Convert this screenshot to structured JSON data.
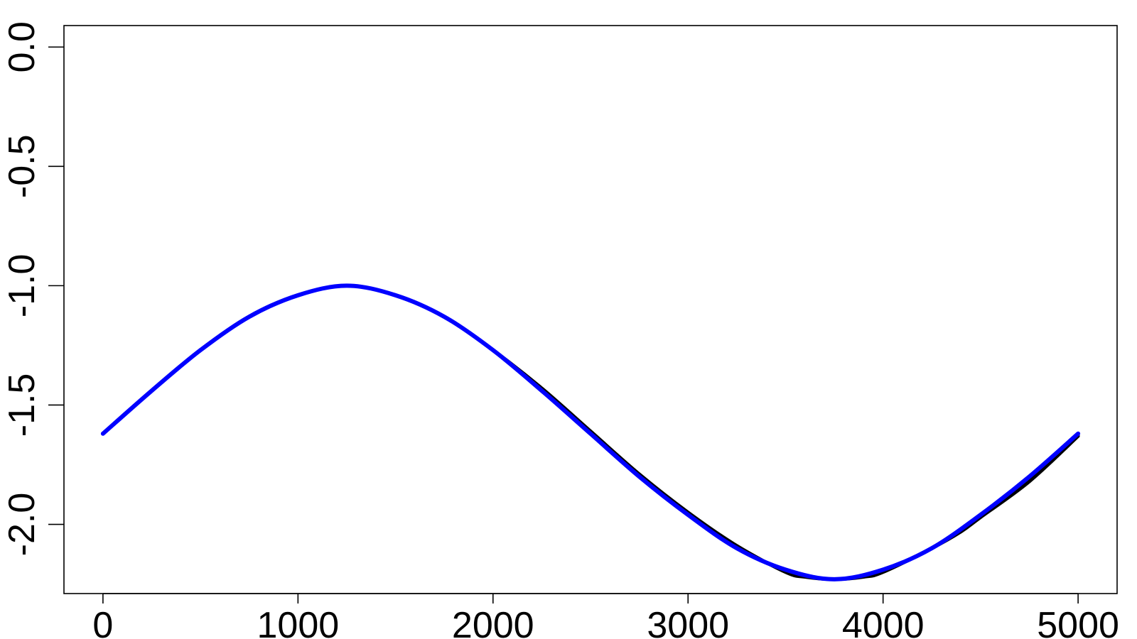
{
  "chart_data": {
    "type": "line",
    "title": "",
    "xlabel": "",
    "ylabel": "",
    "xlim": [
      -200,
      5200
    ],
    "ylim": [
      -2.29,
      0.09
    ],
    "x_ticks": [
      0,
      1000,
      2000,
      3000,
      4000,
      5000
    ],
    "y_ticks": [
      0.0,
      -0.5,
      -1.0,
      -1.5,
      -2.0
    ],
    "x_tick_labels": [
      "0",
      "1000",
      "2000",
      "3000",
      "4000",
      "5000"
    ],
    "y_tick_labels": [
      "0.0",
      "-0.5",
      "-1.0",
      "-1.5",
      "-2.0"
    ],
    "grid": false,
    "legend": "none",
    "series": [
      {
        "color": "#000000",
        "x": [
          0,
          250,
          500,
          750,
          1000,
          1250,
          1500,
          1750,
          2000,
          2250,
          2500,
          2750,
          3000,
          3250,
          3500,
          3600,
          3750,
          3900,
          4000,
          4250,
          4400,
          4500,
          4750,
          5000
        ],
        "values": [
          -1.62,
          -1.44,
          -1.27,
          -1.13,
          -1.04,
          -1.0,
          -1.04,
          -1.13,
          -1.27,
          -1.43,
          -1.61,
          -1.79,
          -1.95,
          -2.09,
          -2.2,
          -2.22,
          -2.23,
          -2.22,
          -2.2,
          -2.1,
          -2.03,
          -1.97,
          -1.82,
          -1.63
        ]
      },
      {
        "color": "#0000ff",
        "x": [
          0,
          250,
          500,
          750,
          1000,
          1250,
          1500,
          1750,
          2000,
          2250,
          2500,
          2750,
          3000,
          3250,
          3500,
          3750,
          4000,
          4250,
          4500,
          4750,
          5000
        ],
        "values": [
          -1.62,
          -1.44,
          -1.27,
          -1.13,
          -1.04,
          -1.0,
          -1.04,
          -1.13,
          -1.27,
          -1.44,
          -1.62,
          -1.8,
          -1.96,
          -2.1,
          -2.19,
          -2.23,
          -2.19,
          -2.1,
          -1.96,
          -1.8,
          -1.62
        ]
      }
    ]
  }
}
